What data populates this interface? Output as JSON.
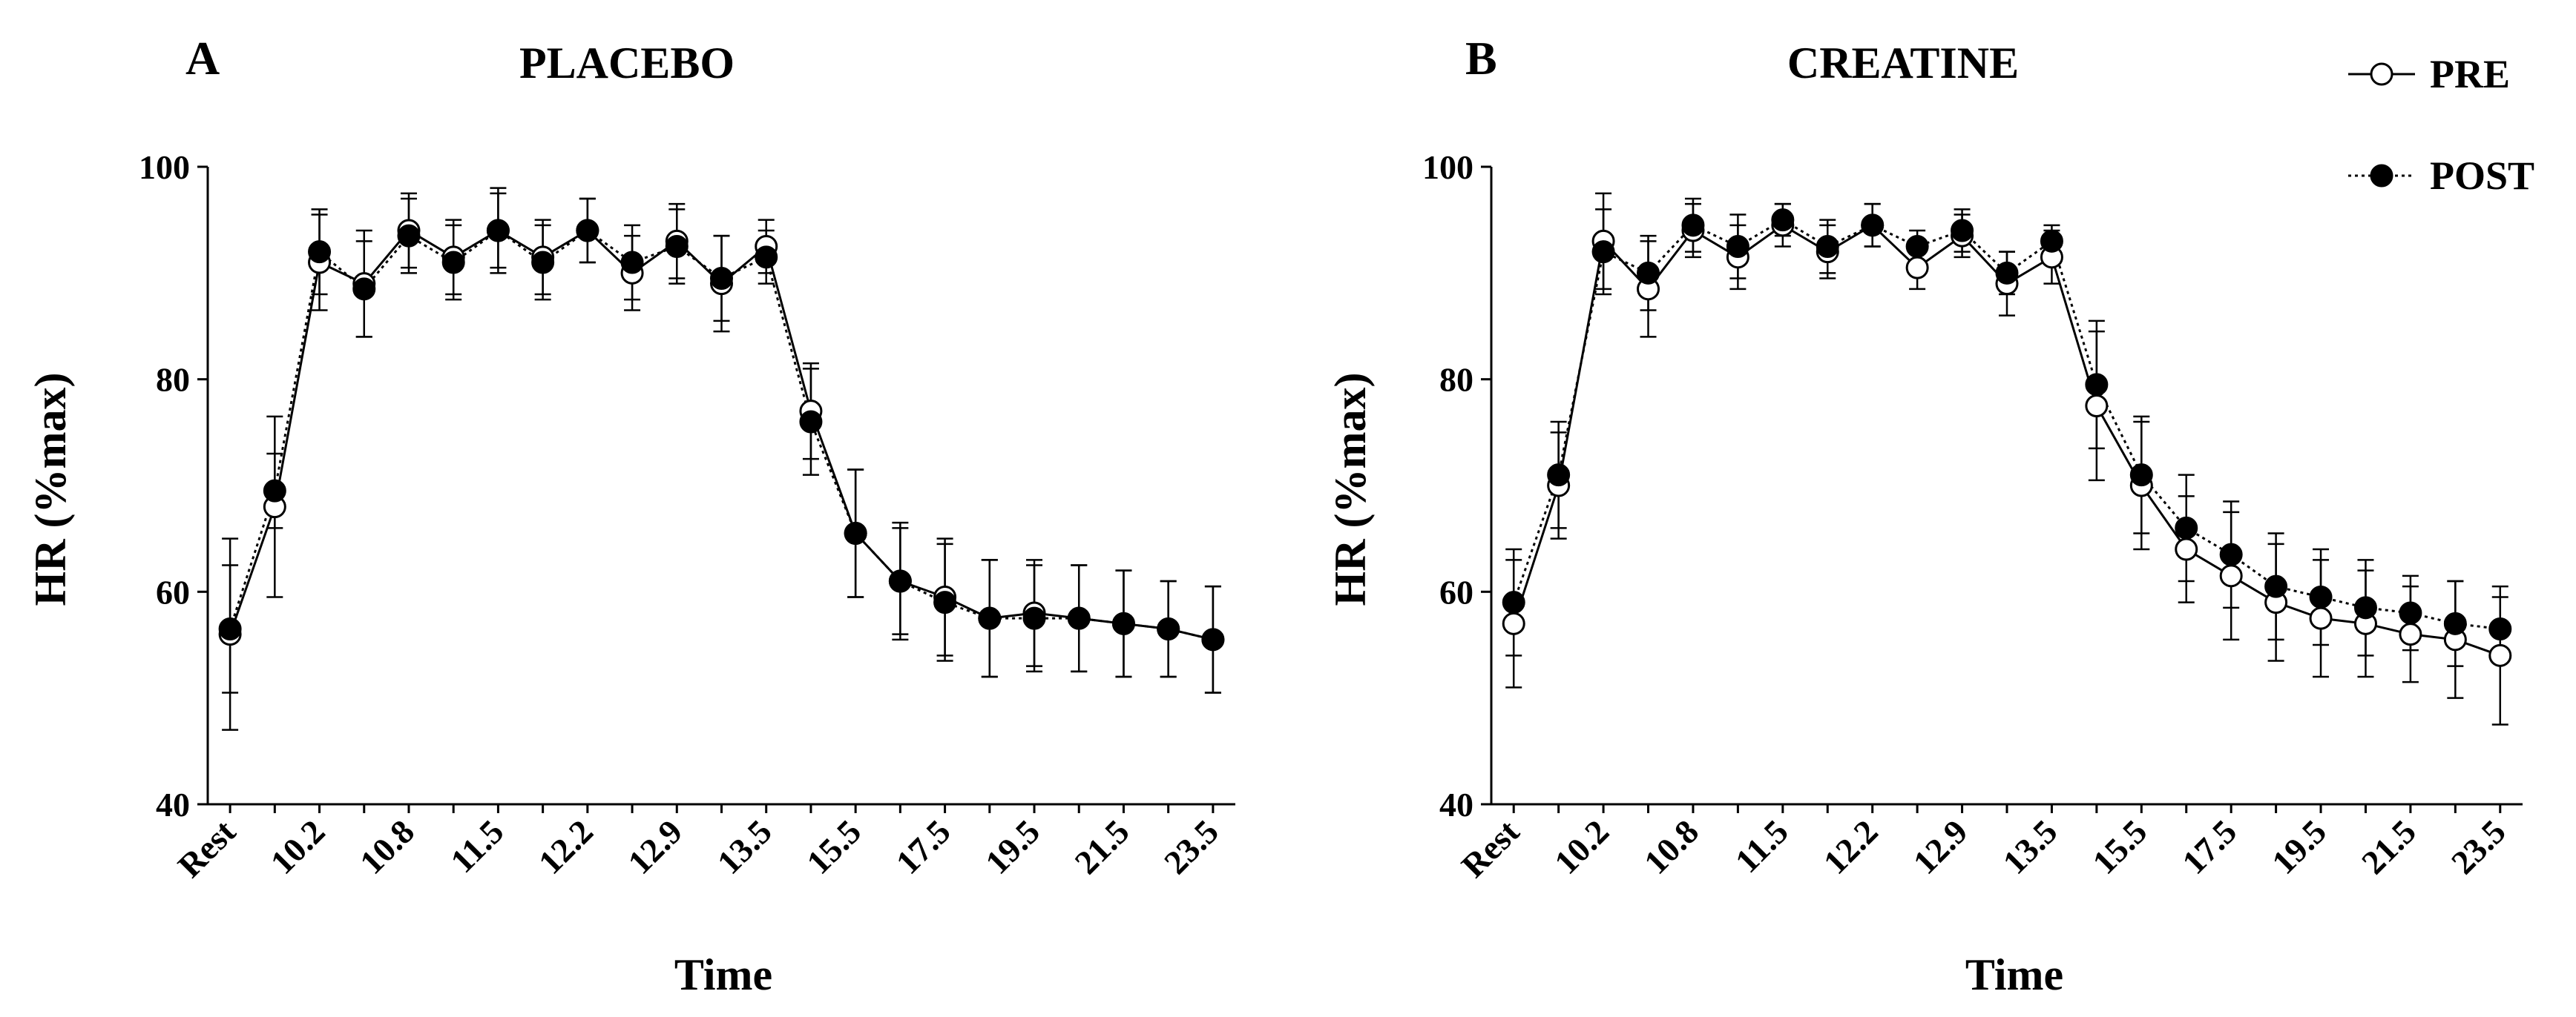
{
  "legend": [
    {
      "label": "PRE",
      "marker": "open-circle",
      "line": "solid"
    },
    {
      "label": "POST",
      "marker": "filled-circle",
      "line": "dotted"
    }
  ],
  "colors": {
    "line": "#000000",
    "background": "#ffffff",
    "open_marker_fill": "#ffffff"
  },
  "chart_data": [
    {
      "type": "line",
      "panel": "A",
      "title": "PLACEBO",
      "xlabel": "Time",
      "ylabel": "HR (%max)",
      "ylim": [
        40,
        100
      ],
      "yticks": [
        40,
        60,
        80,
        100
      ],
      "x_tick_labels": [
        "Rest",
        "10.2",
        "10.8",
        "11.5",
        "12.2",
        "12.9",
        "13.5",
        "15.5",
        "17.5",
        "19.5",
        "21.5",
        "23.5"
      ],
      "n_points": 23,
      "series": [
        {
          "name": "PRE",
          "values": [
            56.0,
            68.0,
            91.0,
            89.0,
            94.0,
            91.5,
            94.0,
            91.5,
            94.0,
            90.0,
            93.0,
            89.0,
            92.5,
            77.0,
            65.5,
            61.0,
            59.5,
            57.5,
            58.0,
            57.5,
            57.0,
            56.5,
            55.5
          ],
          "errors": [
            9.0,
            8.5,
            4.5,
            5.0,
            3.5,
            3.5,
            3.5,
            3.5,
            3.0,
            3.5,
            3.5,
            4.5,
            2.5,
            4.5,
            6.0,
            5.5,
            5.5,
            5.5,
            5.0,
            5.0,
            5.0,
            4.5,
            5.0
          ]
        },
        {
          "name": "POST",
          "values": [
            56.5,
            69.5,
            92.0,
            88.5,
            93.5,
            91.0,
            94.0,
            91.0,
            94.0,
            91.0,
            92.5,
            89.5,
            91.5,
            76.0,
            65.5,
            61.0,
            59.0,
            57.5,
            57.5,
            57.5,
            57.0,
            56.5,
            55.5
          ],
          "errors": [
            6.0,
            3.5,
            4.0,
            4.5,
            3.5,
            3.5,
            4.0,
            3.5,
            3.0,
            3.5,
            3.5,
            4.0,
            2.5,
            5.0,
            6.0,
            5.0,
            5.5,
            5.5,
            5.0,
            5.0,
            5.0,
            4.5,
            5.0
          ]
        }
      ]
    },
    {
      "type": "line",
      "panel": "B",
      "title": "CREATINE",
      "xlabel": "Time",
      "ylabel": "HR (%max)",
      "ylim": [
        40,
        100
      ],
      "yticks": [
        40,
        60,
        80,
        100
      ],
      "x_tick_labels": [
        "Rest",
        "10.2",
        "10.8",
        "11.5",
        "12.2",
        "12.9",
        "13.5",
        "15.5",
        "17.5",
        "19.5",
        "21.5",
        "23.5"
      ],
      "n_points": 23,
      "series": [
        {
          "name": "PRE",
          "values": [
            57.0,
            70.0,
            93.0,
            88.5,
            94.0,
            91.5,
            94.5,
            92.0,
            94.5,
            90.5,
            93.5,
            89.0,
            91.5,
            77.5,
            70.0,
            64.0,
            61.5,
            59.0,
            57.5,
            57.0,
            56.0,
            55.5,
            54.0
          ],
          "errors": [
            6.0,
            5.0,
            4.5,
            4.5,
            2.5,
            3.0,
            2.0,
            2.5,
            2.0,
            2.0,
            2.0,
            3.0,
            2.5,
            7.0,
            6.0,
            5.0,
            6.0,
            5.5,
            5.5,
            5.0,
            4.5,
            5.5,
            6.5
          ]
        },
        {
          "name": "POST",
          "values": [
            59.0,
            71.0,
            92.0,
            90.0,
            94.5,
            92.5,
            95.0,
            92.5,
            94.5,
            92.5,
            94.0,
            90.0,
            93.0,
            79.5,
            71.0,
            66.0,
            63.5,
            60.5,
            59.5,
            58.5,
            58.0,
            57.0,
            56.5
          ],
          "errors": [
            5.0,
            5.0,
            4.0,
            3.5,
            2.5,
            3.0,
            1.5,
            2.5,
            2.0,
            1.5,
            2.0,
            2.0,
            1.5,
            6.0,
            5.5,
            5.0,
            5.0,
            5.0,
            4.5,
            4.5,
            3.5,
            4.0,
            3.0
          ]
        }
      ]
    }
  ]
}
